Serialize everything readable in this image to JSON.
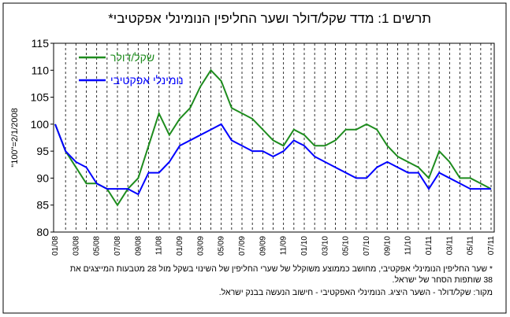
{
  "chart_data": {
    "type": "line",
    "title": "תרשים 1: מדד שקל/דולר ושער החליפין הנומינלי אפקטיבי*",
    "y_label": "\"100\"=2/1/2008",
    "categories": [
      "01/08",
      null,
      "03/08",
      null,
      "05/08",
      null,
      "07/08",
      null,
      "09/08",
      null,
      "11/08",
      null,
      "01/09",
      null,
      "03/09",
      null,
      "05/09",
      null,
      "07/09",
      null,
      "09/09",
      null,
      "11/09",
      null,
      "01/10",
      null,
      "03/10",
      null,
      "05/10",
      null,
      "07/10",
      null,
      "09/10",
      null,
      "11/10",
      null,
      "01/11",
      null,
      "03/11",
      null,
      "05/11",
      null,
      "07/11"
    ],
    "series": [
      {
        "name": "שקל/דולר",
        "color": "#1e8c1e",
        "values": [
          100,
          95,
          92,
          89,
          89,
          88,
          85,
          88,
          90,
          96,
          102,
          98,
          101,
          103,
          107,
          110,
          108,
          103,
          102,
          101,
          99,
          97,
          96,
          99,
          98,
          96,
          96,
          97,
          99,
          99,
          100,
          99,
          96,
          94,
          93,
          92,
          90,
          95,
          93,
          90,
          90,
          89,
          88
        ]
      },
      {
        "name": "נומינלי אפקטיבי",
        "color": "#0000ff",
        "values": [
          100,
          95,
          93,
          92,
          89,
          88,
          88,
          88,
          87,
          91,
          91,
          93,
          96,
          97,
          98,
          99,
          100,
          97,
          96,
          95,
          95,
          94,
          95,
          97,
          96,
          94,
          93,
          92,
          91,
          90,
          90,
          92,
          93,
          92,
          91,
          91,
          88,
          91,
          90,
          89,
          88,
          88,
          88
        ]
      }
    ],
    "ylim": [
      80,
      115
    ],
    "yticks": [
      80,
      85,
      90,
      95,
      100,
      105,
      110,
      115
    ],
    "grid": true,
    "legend": "upper left",
    "notes": [
      "* שער החליפין הנומינלי אפקטיבי, מחושב כממוצע משוקלל של שערי החליפין של השינוי בשקל מול 28 מטבעות המייצגים את",
      "38 שותפות הסחר של ישראל.",
      "מקור: שקל/דולר - השער היציג. הנומינלי האפקטיבי - חישוב הנעשה בבנק ישראל."
    ]
  }
}
